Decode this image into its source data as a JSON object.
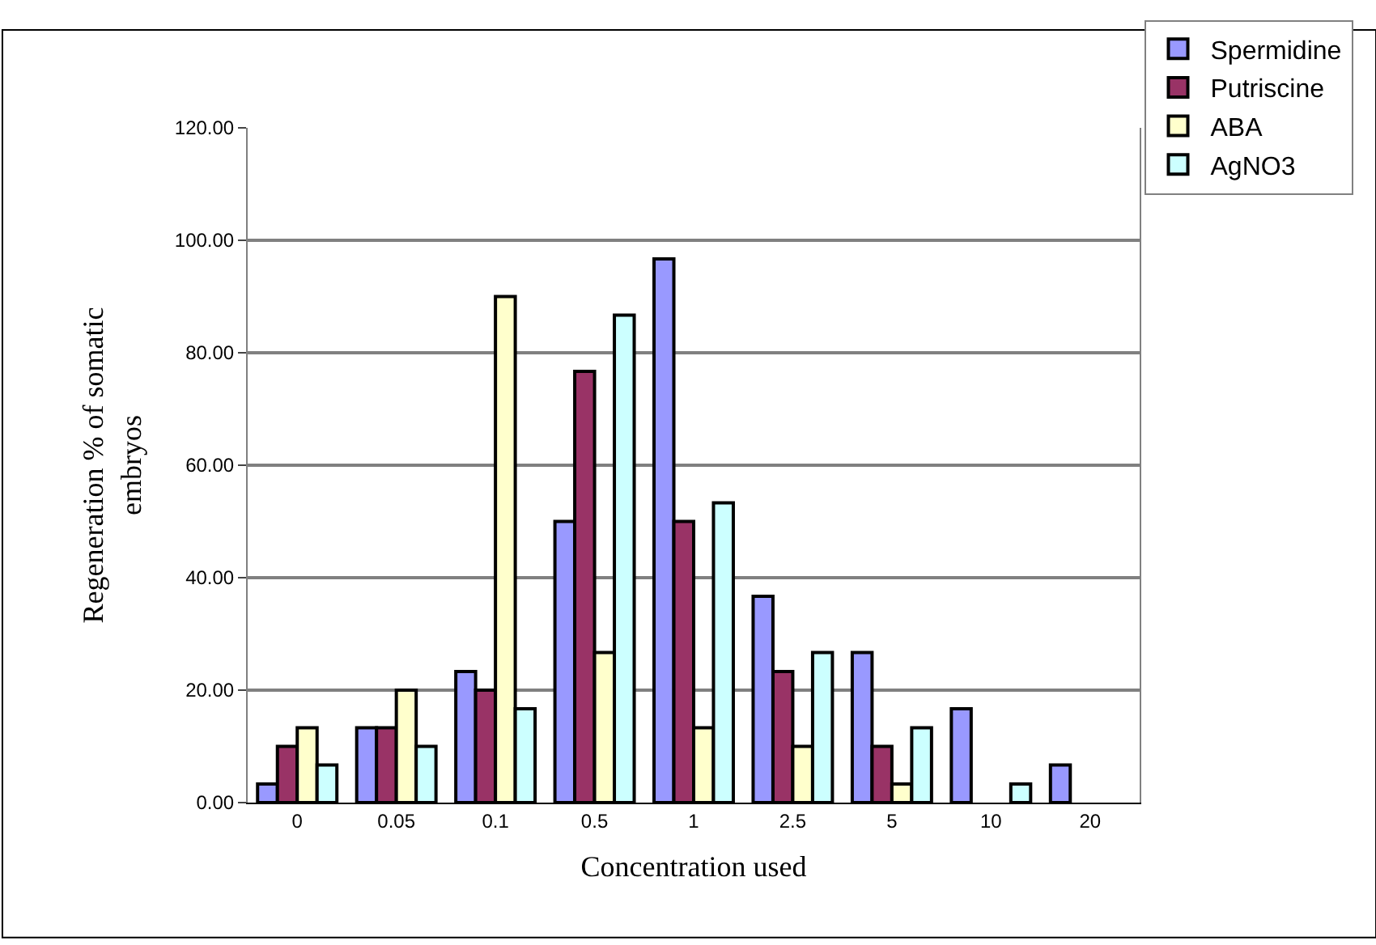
{
  "chart_data": {
    "type": "bar",
    "xlabel": "Concentration used",
    "ylabel": "Regeneration % of somatic\nembryos",
    "categories": [
      "0",
      "0.05",
      "0.1",
      "0.5",
      "1",
      "2.5",
      "5",
      "10",
      "20"
    ],
    "series": [
      {
        "name": "Spermidine",
        "color": "#9999ff",
        "values": [
          3.3,
          13.3,
          23.3,
          50,
          96.7,
          36.7,
          26.7,
          16.7,
          6.7
        ]
      },
      {
        "name": "Putriscine",
        "color": "#993366",
        "values": [
          10,
          13.3,
          20,
          76.7,
          50,
          23.3,
          10,
          null,
          null
        ]
      },
      {
        "name": "ABA",
        "color": "#ffffcc",
        "values": [
          13.3,
          20,
          90,
          26.7,
          13.3,
          10,
          3.3,
          null,
          null
        ]
      },
      {
        "name": "AgNO3",
        "color": "#ccffff",
        "values": [
          6.7,
          10,
          16.7,
          86.7,
          53.3,
          26.7,
          13.3,
          3.3,
          null
        ]
      }
    ],
    "ylim": [
      0,
      120
    ],
    "yticks": [
      {
        "value": 0,
        "label": "0.00"
      },
      {
        "value": 20,
        "label": "20.00"
      },
      {
        "value": 40,
        "label": "40.00"
      },
      {
        "value": 60,
        "label": "60.00"
      },
      {
        "value": 80,
        "label": "80.00"
      },
      {
        "value": 100,
        "label": "100.00"
      },
      {
        "value": 120,
        "label": "120.00"
      }
    ],
    "grid": "y",
    "legend": "top right"
  }
}
